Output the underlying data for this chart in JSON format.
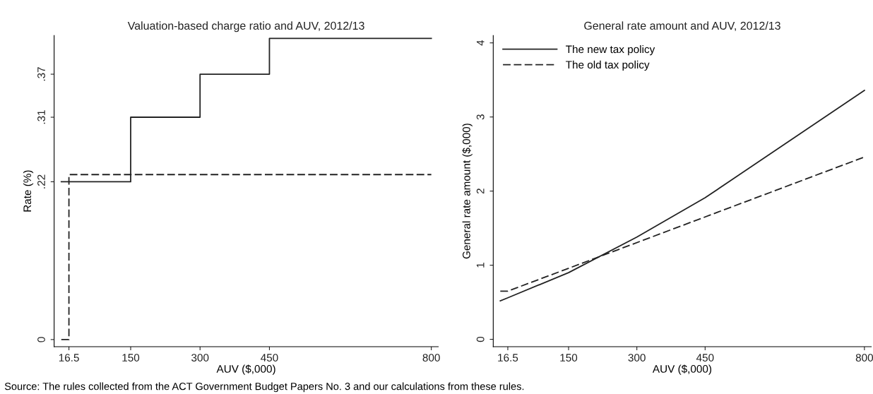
{
  "chart_data": [
    {
      "type": "step",
      "title": "Valuation-based charge ratio and AUV, 2012/13",
      "xlabel": "AUV ($,000)",
      "ylabel": "Rate (%)",
      "xlim": [
        -15.5,
        815
      ],
      "xticks": [
        16.5,
        150,
        300,
        450,
        800
      ],
      "ylim": [
        -0.01,
        0.424
      ],
      "yticks": [
        0,
        {
          "value": 0.22,
          "label": ".22"
        },
        {
          "value": 0.31,
          "label": ".31"
        },
        {
          "value": 0.37,
          "label": ".37"
        }
      ],
      "grid": false,
      "legend": false,
      "series": [
        {
          "color": "#222222",
          "line_style": "solid",
          "x": [
            0,
            150,
            300,
            450,
            800
          ],
          "values": [
            0.22,
            0.31,
            0.37,
            0.42,
            0.42
          ]
        },
        {
          "color": "#222222",
          "line_style": "dashed",
          "x": [
            0,
            16.5,
            800
          ],
          "values": [
            0,
            0.23,
            0.23
          ]
        }
      ]
    },
    {
      "type": "line",
      "title": "General rate amount and AUV, 2012/13",
      "xlabel": "AUV ($,000)",
      "ylabel": "General rate amount ($,000)",
      "xlim": [
        -15.5,
        815
      ],
      "xticks": [
        16.5,
        150,
        300,
        450,
        800
      ],
      "ylim": [
        -0.1,
        4.1
      ],
      "yticks": [
        0,
        1,
        2,
        3,
        4
      ],
      "grid": false,
      "legend": "top left",
      "annotations": [
        "Source: The rules collected from the ACT Government Budget Papers No. 3 and our calculations from these rules."
      ],
      "series": [
        {
          "name": "The new tax policy",
          "color": "#222222",
          "line_style": "solid",
          "x": [
            0,
            16.5,
            150,
            300,
            450,
            800
          ],
          "values": [
            0.52,
            0.56,
            0.9,
            1.38,
            1.91,
            3.36
          ]
        },
        {
          "name": "The old tax policy",
          "color": "#222222",
          "line_style": "dashed",
          "x": [
            0,
            16.5,
            800
          ],
          "values": [
            0.65,
            0.65,
            2.46
          ]
        }
      ]
    }
  ]
}
